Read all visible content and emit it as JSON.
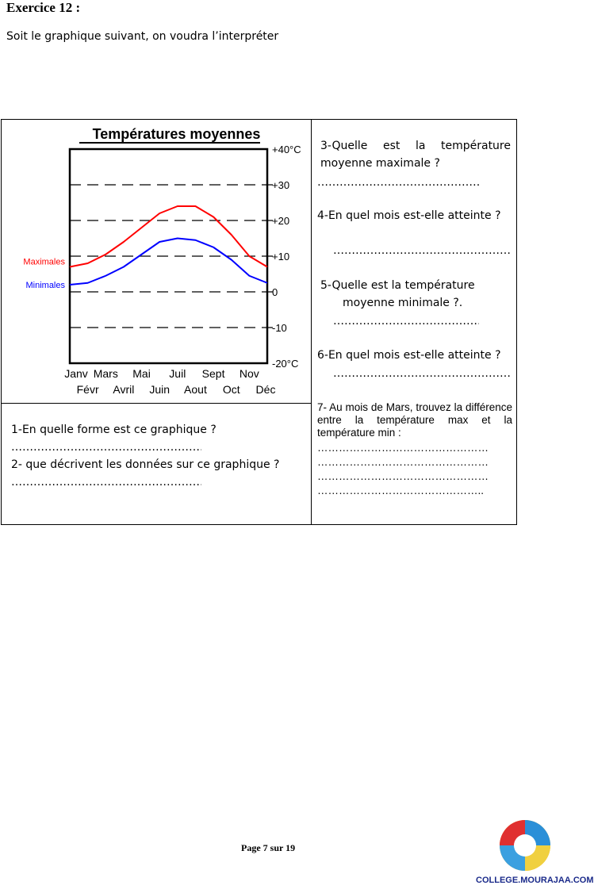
{
  "exercise_title": "Exercice 12 :",
  "intro": "Soit le graphique suivant, on voudra l’interpréter",
  "chart_data": {
    "type": "line",
    "title": "Températures moyennes",
    "categories": [
      "Janv",
      "Févr",
      "Mars",
      "Avril",
      "Mai",
      "Juin",
      "Juil",
      "Aout",
      "Sept",
      "Oct",
      "Nov",
      "Déc"
    ],
    "series": [
      {
        "name": "Maximales",
        "color": "#ff0000",
        "values": [
          7,
          8,
          10.5,
          14,
          18,
          22,
          24,
          24,
          21,
          16,
          10,
          7
        ]
      },
      {
        "name": "Minimales",
        "color": "#0000ff",
        "values": [
          2,
          2.5,
          4.5,
          7,
          10.5,
          14,
          15,
          14.5,
          12.5,
          9,
          4.5,
          2.5
        ]
      }
    ],
    "ylim": [
      -20,
      40
    ],
    "yticks": [
      {
        "v": 40,
        "label": "+40°C"
      },
      {
        "v": 30,
        "label": "+30"
      },
      {
        "v": 20,
        "label": "+20"
      },
      {
        "v": 10,
        "label": "+10"
      },
      {
        "v": 0,
        "label": "0"
      },
      {
        "v": -10,
        "label": "-10"
      },
      {
        "v": -20,
        "label": "-20°C"
      }
    ],
    "grid": "dashed horizontal",
    "legend": "left"
  },
  "questions": {
    "q1": "1-En quelle forme est ce graphique ?",
    "q1_dots": "…………………………………………………",
    "q2": "2- que décrivent les données sur ce graphique ?",
    "q2_dots": "…………………………………………………",
    "q3": "3-Quelle est la température moyenne maximale ?",
    "q3_dots": "…………………………………………",
    "q4": "4-En quel mois est-elle atteinte ?",
    "q4_dots": "…………………………………………",
    "q5a": "5-Quelle est la température",
    "q5b": "moyenne minimale ?.",
    "q5_dots": "……………………………………",
    "q6": "6-En quel mois est-elle atteinte ?",
    "q6_dots": "…………………………………………",
    "q7": "7- Au mois de Mars, trouvez la différence entre la température max et la température min :",
    "q7_dots": [
      "…………………………………………",
      "…………………………………………",
      "…………………………………………",
      "……………………………………….."
    ]
  },
  "footer": "Page 7 sur 19",
  "logo_text": "COLLEGE.MOURAJAA.COM"
}
